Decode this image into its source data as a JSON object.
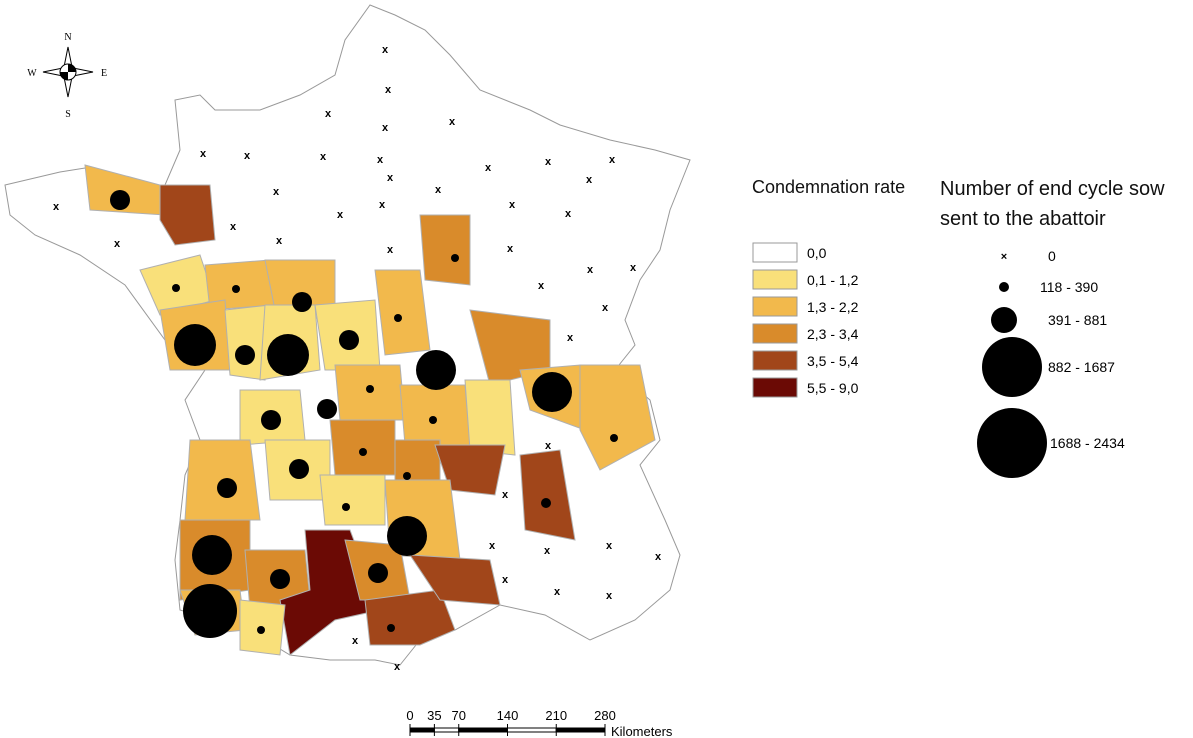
{
  "compass": {
    "north": "N",
    "south": "S",
    "east": "E",
    "west": "W"
  },
  "condemnation_legend": {
    "title": "Condemnation rate",
    "classes": [
      {
        "label": "0,0",
        "color": "#ffffff"
      },
      {
        "label": "0,1 - 1,2",
        "color": "#f9e07a"
      },
      {
        "label": "1,3 - 2,2",
        "color": "#f2b94c"
      },
      {
        "label": "2,3 - 3,4",
        "color": "#d98b2b"
      },
      {
        "label": "3,5 - 5,4",
        "color": "#a1461a"
      },
      {
        "label": "5,5 - 9,0",
        "color": "#6b0a05"
      }
    ]
  },
  "sow_legend": {
    "title": "Number of end cycle sow sent to the abattoir",
    "classes": [
      "0",
      "118 - 390",
      "391 - 881",
      "882 - 1687",
      "1688 - 2434"
    ]
  },
  "scale_bar": {
    "ticks": [
      0,
      35,
      70,
      140,
      210,
      280
    ],
    "unit": "Kilometers"
  }
}
